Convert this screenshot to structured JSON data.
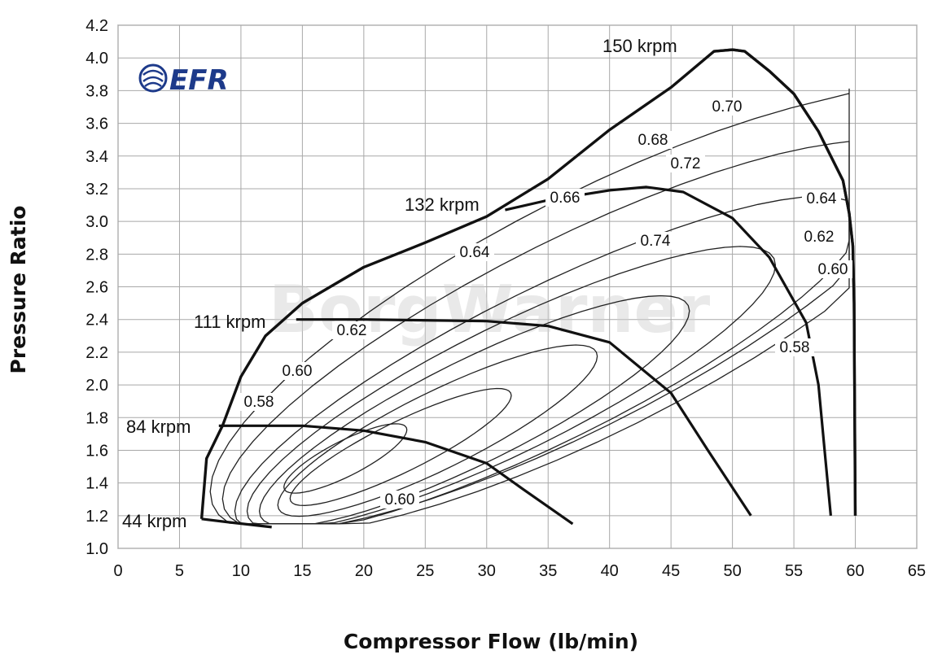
{
  "chart_data": {
    "type": "line",
    "title": "",
    "xlabel": "Compressor Flow (lb/min)",
    "ylabel": "Pressure Ratio",
    "xlim": [
      0,
      65
    ],
    "ylim": [
      1.0,
      4.2
    ],
    "x_ticks": [
      "0",
      "5",
      "10",
      "15",
      "20",
      "25",
      "30",
      "35",
      "40",
      "45",
      "50",
      "55",
      "60",
      "65"
    ],
    "y_ticks": [
      "1.0",
      "1.2",
      "1.4",
      "1.6",
      "1.8",
      "2.0",
      "2.2",
      "2.4",
      "2.6",
      "2.8",
      "3.0",
      "3.2",
      "3.4",
      "3.6",
      "3.8",
      "4.0",
      "4.2"
    ],
    "grid": true,
    "surge_line": [
      [
        6.8,
        1.18
      ],
      [
        7.2,
        1.55
      ],
      [
        8.5,
        1.75
      ],
      [
        10,
        2.05
      ],
      [
        12,
        2.3
      ],
      [
        15,
        2.5
      ],
      [
        20,
        2.72
      ],
      [
        25,
        2.87
      ],
      [
        30,
        3.03
      ],
      [
        35,
        3.26
      ],
      [
        40,
        3.56
      ],
      [
        45,
        3.82
      ],
      [
        48.5,
        4.04
      ],
      [
        50,
        4.05
      ],
      [
        51,
        4.04
      ],
      [
        53,
        3.92
      ],
      [
        55,
        3.78
      ],
      [
        57,
        3.55
      ],
      [
        59,
        3.25
      ],
      [
        59.5,
        3.05
      ],
      [
        59.8,
        2.85
      ],
      [
        59.9,
        2.5
      ],
      [
        59.95,
        1.8
      ],
      [
        60,
        1.2
      ]
    ],
    "speed_lines": [
      {
        "name": "44 krpm",
        "points": [
          [
            6.8,
            1.18
          ],
          [
            9,
            1.16
          ],
          [
            12.5,
            1.13
          ]
        ]
      },
      {
        "name": "84 krpm",
        "points": [
          [
            8.2,
            1.75
          ],
          [
            15,
            1.75
          ],
          [
            20,
            1.72
          ],
          [
            25,
            1.65
          ],
          [
            30,
            1.52
          ],
          [
            33,
            1.36
          ],
          [
            37,
            1.15
          ]
        ]
      },
      {
        "name": "111 krpm",
        "points": [
          [
            14.5,
            2.4
          ],
          [
            20,
            2.4
          ],
          [
            30,
            2.39
          ],
          [
            35,
            2.36
          ],
          [
            40,
            2.26
          ],
          [
            45,
            1.95
          ],
          [
            48,
            1.6
          ],
          [
            51.5,
            1.2
          ]
        ]
      },
      {
        "name": "132 krpm",
        "points": [
          [
            31.5,
            3.07
          ],
          [
            35,
            3.13
          ],
          [
            40,
            3.19
          ],
          [
            43,
            3.21
          ],
          [
            46,
            3.18
          ],
          [
            50,
            3.02
          ],
          [
            53,
            2.78
          ],
          [
            56,
            2.38
          ],
          [
            57,
            2.0
          ],
          [
            57.5,
            1.6
          ],
          [
            58,
            1.2
          ]
        ]
      },
      {
        "name": "150 krpm",
        "points": [
          [
            48.5,
            4.04
          ],
          [
            50,
            4.05
          ],
          [
            51,
            4.04
          ],
          [
            53,
            3.92
          ],
          [
            55,
            3.78
          ],
          [
            57,
            3.55
          ],
          [
            59,
            3.25
          ],
          [
            59.5,
            3.05
          ],
          [
            59.8,
            2.85
          ],
          [
            59.9,
            2.5
          ],
          [
            59.95,
            1.8
          ],
          [
            60,
            1.2
          ]
        ]
      }
    ],
    "efficiency_islands": [
      {
        "name": "0.58",
        "label_pos": [
          11.5,
          1.9
        ],
        "label_pos2": [
          55.3,
          2.24
        ]
      },
      {
        "name": "0.60",
        "label_pos": [
          14.5,
          2.1
        ],
        "label_pos2": [
          57.8,
          2.73
        ],
        "label_pos3": [
          23,
          1.3
        ]
      },
      {
        "name": "0.62",
        "label_pos": [
          19,
          2.35
        ],
        "label_pos2": [
          57.2,
          2.89
        ]
      },
      {
        "name": "0.64",
        "label_pos": [
          29,
          2.82
        ],
        "label_pos2": [
          57.3,
          3.14
        ]
      },
      {
        "name": "0.66",
        "label_pos": [
          36.5,
          3.15
        ]
      },
      {
        "name": "0.68",
        "label_pos": [
          43,
          3.51
        ]
      },
      {
        "name": "0.70",
        "label_pos": [
          49.5,
          3.71
        ]
      },
      {
        "name": "0.72",
        "label_pos": [
          46.5,
          3.37
        ]
      },
      {
        "name": "0.74",
        "label_pos": [
          44,
          2.87
        ]
      }
    ]
  },
  "labels": {
    "xlabel": "Compressor Flow (lb/min)",
    "ylabel": "Pressure Ratio",
    "speed": [
      "44 krpm",
      "84 krpm",
      "111 krpm",
      "132 krpm",
      "150 krpm"
    ],
    "eff": [
      "0.58",
      "0.60",
      "0.62",
      "0.64",
      "0.66",
      "0.68",
      "0.70",
      "0.72",
      "0.74",
      "0.58",
      "0.60",
      "0.62",
      "0.64",
      "0.60"
    ]
  },
  "logo": {
    "text": "EFR",
    "color": "#1d3a8a"
  },
  "watermark": "BorgWarner"
}
